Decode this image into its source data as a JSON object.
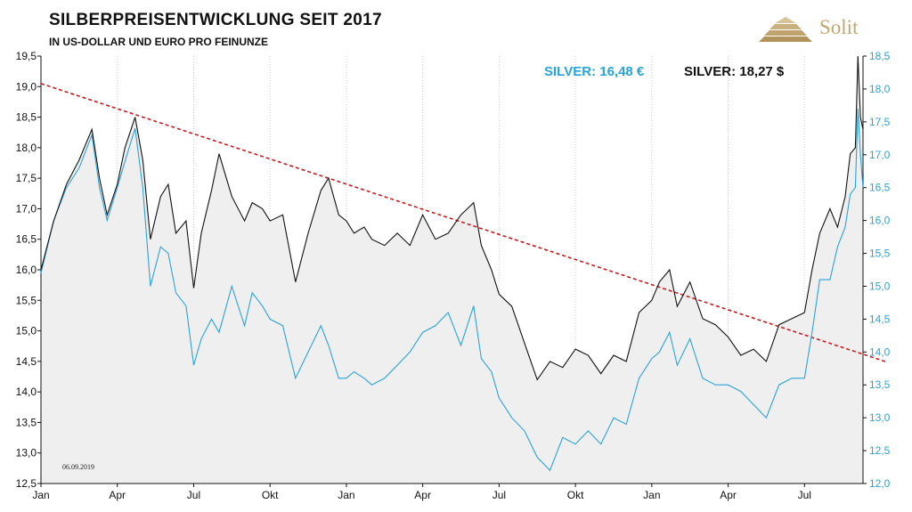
{
  "header": {
    "title": "SILBERPREISENTWICKLUNG SEIT 2017",
    "subtitle": "IN US-DOLLAR UND EURO PRO FEINUNZE",
    "logo_text": "Solit"
  },
  "prices": {
    "eur": "SILVER: 16,48 €",
    "usd": "SILVER: 18,27 $"
  },
  "colors": {
    "usd_line": "#111111",
    "eur_line": "#2aa3d8",
    "trend": "#c8191e",
    "fill": "#efefef",
    "logo": "#c2a670"
  },
  "chart_data": {
    "type": "line",
    "title": "SILBERPREISENTWICKLUNG SEIT 2017",
    "subtitle": "IN US-DOLLAR UND EURO PRO FEINUNZE",
    "date_note": "06.09.2019",
    "x_tick_labels": [
      "Jan",
      "Apr",
      "Jul",
      "Okt",
      "Jan",
      "Apr",
      "Jul",
      "Okt",
      "Jan",
      "Apr",
      "Jul"
    ],
    "x_tick_months": [
      0,
      3,
      6,
      9,
      12,
      15,
      18,
      21,
      24,
      27,
      30
    ],
    "x_range_months": [
      0,
      32.3
    ],
    "y_left": {
      "ylim": [
        12.5,
        19.5
      ],
      "ticks": [
        "12,5",
        "13,0",
        "13,5",
        "14,0",
        "14,5",
        "15,0",
        "15,5",
        "16,0",
        "16,5",
        "17,0",
        "17,5",
        "18,0",
        "18,5",
        "19,0",
        "19,5"
      ]
    },
    "y_right": {
      "ylim": [
        12.0,
        18.5
      ],
      "ticks": [
        "12,0",
        "12,5",
        "13,0",
        "13,5",
        "14,0",
        "14,5",
        "15,0",
        "15,5",
        "16,0",
        "16,5",
        "17,0",
        "17,5",
        "18,0",
        "18,5"
      ]
    },
    "series": [
      {
        "name": "SILVER: 18,27 $",
        "axis": "left",
        "x_month": [
          0,
          0.5,
          1,
          1.5,
          2,
          2.3,
          2.6,
          3,
          3.3,
          3.7,
          4,
          4.3,
          4.7,
          5,
          5.3,
          5.7,
          6,
          6.3,
          6.7,
          7,
          7.5,
          8,
          8.3,
          8.7,
          9,
          9.5,
          10,
          10.5,
          11,
          11.3,
          11.7,
          12,
          12.3,
          12.7,
          13,
          13.5,
          14,
          14.5,
          15,
          15.5,
          16,
          16.5,
          17,
          17.3,
          17.7,
          18,
          18.5,
          19,
          19.5,
          20,
          20.5,
          21,
          21.5,
          22,
          22.5,
          23,
          23.5,
          24,
          24.3,
          24.7,
          25,
          25.5,
          26,
          26.5,
          27,
          27.5,
          28,
          28.5,
          29,
          29.5,
          30,
          30.3,
          30.6,
          31,
          31.3,
          31.6,
          31.8,
          32,
          32.1,
          32.2,
          32.3
        ],
        "values": [
          16.0,
          16.8,
          17.4,
          17.8,
          18.3,
          17.5,
          16.9,
          17.4,
          18.0,
          18.5,
          17.8,
          16.5,
          17.2,
          17.4,
          16.6,
          16.8,
          15.7,
          16.6,
          17.3,
          17.9,
          17.2,
          16.8,
          17.1,
          17.0,
          16.8,
          16.9,
          15.8,
          16.6,
          17.3,
          17.5,
          16.9,
          16.8,
          16.6,
          16.7,
          16.5,
          16.4,
          16.6,
          16.4,
          16.9,
          16.5,
          16.6,
          16.9,
          17.1,
          16.4,
          16.0,
          15.6,
          15.4,
          14.8,
          14.2,
          14.5,
          14.4,
          14.7,
          14.6,
          14.3,
          14.6,
          14.5,
          15.3,
          15.5,
          15.8,
          16.0,
          15.4,
          15.8,
          15.2,
          15.1,
          14.9,
          14.6,
          14.7,
          14.5,
          15.1,
          15.2,
          15.3,
          16.0,
          16.6,
          17.0,
          16.7,
          17.2,
          17.9,
          18.0,
          19.5,
          18.5,
          18.3
        ]
      },
      {
        "name": "SILVER: 16,48 €",
        "axis": "right",
        "x_month": [
          0,
          0.5,
          1,
          1.5,
          2,
          2.3,
          2.6,
          3,
          3.3,
          3.7,
          4,
          4.3,
          4.7,
          5,
          5.3,
          5.7,
          6,
          6.3,
          6.7,
          7,
          7.5,
          8,
          8.3,
          8.7,
          9,
          9.5,
          10,
          10.5,
          11,
          11.3,
          11.7,
          12,
          12.3,
          12.7,
          13,
          13.5,
          14,
          14.5,
          15,
          15.5,
          16,
          16.5,
          17,
          17.3,
          17.7,
          18,
          18.5,
          19,
          19.5,
          20,
          20.5,
          21,
          21.5,
          22,
          22.5,
          23,
          23.5,
          24,
          24.3,
          24.7,
          25,
          25.5,
          26,
          26.5,
          27,
          27.5,
          28,
          28.5,
          29,
          29.5,
          30,
          30.3,
          30.6,
          31,
          31.3,
          31.6,
          31.8,
          32,
          32.1,
          32.2,
          32.3
        ],
        "values": [
          15.2,
          16.0,
          16.5,
          16.8,
          17.3,
          16.5,
          16.0,
          16.5,
          16.9,
          17.4,
          16.5,
          15.0,
          15.6,
          15.5,
          14.9,
          14.7,
          13.8,
          14.2,
          14.5,
          14.3,
          15.0,
          14.4,
          14.9,
          14.7,
          14.5,
          14.4,
          13.6,
          14.0,
          14.4,
          14.1,
          13.6,
          13.6,
          13.7,
          13.6,
          13.5,
          13.6,
          13.8,
          14.0,
          14.3,
          14.4,
          14.6,
          14.1,
          14.7,
          13.9,
          13.7,
          13.3,
          13.0,
          12.8,
          12.4,
          12.2,
          12.7,
          12.6,
          12.8,
          12.6,
          13.0,
          12.9,
          13.6,
          13.9,
          14.0,
          14.3,
          13.8,
          14.2,
          13.6,
          13.5,
          13.5,
          13.4,
          13.2,
          13.0,
          13.5,
          13.6,
          13.6,
          14.3,
          15.1,
          15.1,
          15.6,
          15.9,
          16.4,
          16.5,
          17.7,
          17.0,
          16.5
        ]
      }
    ],
    "trendline": {
      "axis": "left",
      "x_month": [
        0,
        32.3
      ],
      "values": [
        19.05,
        14.6
      ]
    },
    "grid": {
      "x": true,
      "y": false
    }
  }
}
